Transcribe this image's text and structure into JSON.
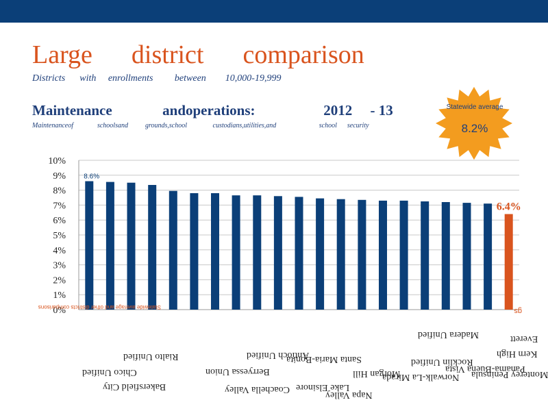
{
  "header": {
    "title": "Large      district      comparison",
    "subtitle": "Districts      with     enrollments         between        10,000-19,999",
    "heading": "Maintenance              andoperations:                   2012     - 13",
    "subheading": "Maintenanceof              schoolsand          grounds,school               custodians,utilities,and                         school      security"
  },
  "statewide": {
    "label": "Statewide average",
    "value": "8.2%"
  },
  "chart_data": {
    "type": "bar",
    "ylim": [
      0,
      10
    ],
    "yticks": [
      "0%",
      "1%",
      "2%",
      "3%",
      "4%",
      "5%",
      "6%",
      "7%",
      "8%",
      "9%",
      "10%"
    ],
    "values": [
      8.6,
      8.55,
      8.5,
      8.35,
      7.95,
      7.8,
      7.8,
      7.65,
      7.65,
      7.6,
      7.55,
      7.45,
      7.4,
      7.35,
      7.3,
      7.3,
      7.25,
      7.2,
      7.15,
      7.1,
      6.4
    ],
    "colors": [
      "#0b3f78",
      "#0b3f78",
      "#0b3f78",
      "#0b3f78",
      "#0b3f78",
      "#0b3f78",
      "#0b3f78",
      "#0b3f78",
      "#0b3f78",
      "#0b3f78",
      "#0b3f78",
      "#0b3f78",
      "#0b3f78",
      "#0b3f78",
      "#0b3f78",
      "#0b3f78",
      "#0b3f78",
      "#0b3f78",
      "#0b3f78",
      "#0b3f78",
      "#d9541e"
    ],
    "data_labels": {
      "first": "8.6%",
      "last": "6.4%"
    },
    "grid": true,
    "mirrored_baseline_text": "Statewide average and other districts comparisons",
    "mirrored_end_label": "gs",
    "mirrored_category_labels": [
      "Chico Unified",
      "Bakersfield City",
      "Rialto Unified",
      "Coachella Valley",
      "Berryessa Union",
      "Antioch Unified",
      "Lake Elsinore",
      "Napa Valley",
      "Morgan Hill",
      "Norwalk-La Mirada",
      "Rocklin Unified",
      "Madera Unified",
      "Panama-Buena Vista",
      "Monterey Peninsula",
      "Kern High",
      "Everett",
      "Santa Maria-Bonita"
    ]
  },
  "colors": {
    "bar_primary": "#0b3f78",
    "bar_highlight": "#d9541e",
    "burst": "#f39c1f",
    "title": "#d9541e",
    "text": "#1f3f7a"
  }
}
